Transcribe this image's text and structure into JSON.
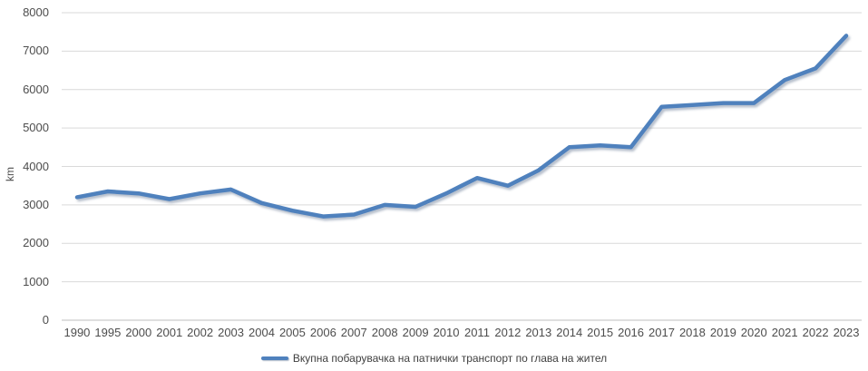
{
  "chart_data": {
    "type": "line",
    "title": "",
    "ylabel": "km",
    "xlabel": "",
    "categories": [
      "1990",
      "1995",
      "2000",
      "2001",
      "2002",
      "2003",
      "2004",
      "2005",
      "2006",
      "2007",
      "2008",
      "2009",
      "2010",
      "2011",
      "2012",
      "2013",
      "2014",
      "2015",
      "2016",
      "2017",
      "2018",
      "2019",
      "2020",
      "2021",
      "2022",
      "2023"
    ],
    "series": [
      {
        "name": "Вкупна побарувачка на патнички транспорт по глава на жител",
        "color": "#4F81BD",
        "values": [
          3200,
          3350,
          3300,
          3150,
          3300,
          3400,
          3050,
          2850,
          2700,
          2750,
          3000,
          2950,
          3300,
          3700,
          3500,
          3900,
          4500,
          4550,
          4500,
          5550,
          5600,
          5650,
          5650,
          6250,
          6550,
          7400
        ]
      }
    ],
    "ylim": [
      0,
      8000
    ],
    "ytick_step": 1000,
    "yticks": [
      0,
      1000,
      2000,
      3000,
      4000,
      5000,
      6000,
      7000,
      8000
    ],
    "grid": "horizontal",
    "legend_position": "bottom",
    "colors": {
      "line": "#4F81BD",
      "gridline": "#D9D9D9",
      "axis_line": "#BFBFBF",
      "tick_label": "#4D4D4D",
      "background": "#FFFFFF"
    }
  }
}
